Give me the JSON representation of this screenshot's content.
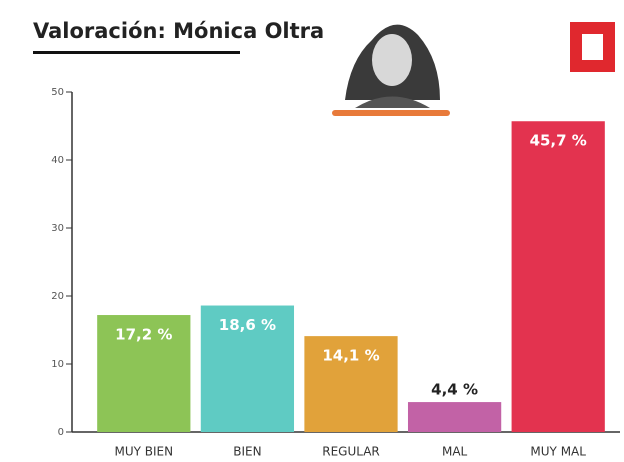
{
  "chart_data": {
    "type": "bar",
    "title": "Valoración: Mónica Oltra",
    "categories": [
      "MUY BIEN",
      "BIEN",
      "REGULAR",
      "MAL",
      "MUY MAL"
    ],
    "values": [
      17.2,
      18.6,
      14.1,
      4.4,
      45.7
    ],
    "value_labels": [
      "17,2 %",
      "18,6 %",
      "14,1 %",
      "4,4 %",
      "45,7 %"
    ],
    "colors": [
      "#8dc456",
      "#5fcbc3",
      "#e1a23a",
      "#c262a6",
      "#e3334f"
    ],
    "ylim": [
      0,
      50
    ],
    "yticks": [
      0,
      10,
      20,
      30,
      40,
      50
    ],
    "grid": false
  }
}
